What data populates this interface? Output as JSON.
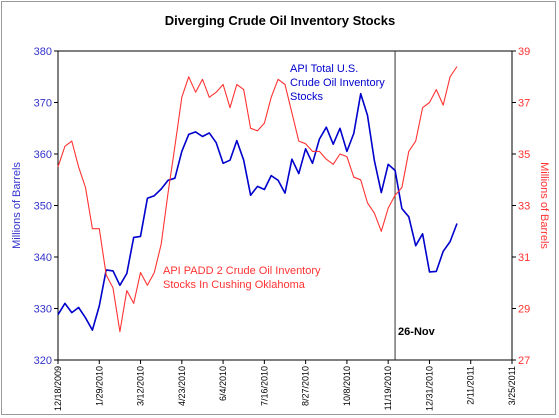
{
  "chart_data": {
    "type": "line",
    "title": "Diverging Crude Oil Inventory Stocks",
    "y_left_label": "Millions of Barrels",
    "y_right_label": "Millions of Barrels",
    "y_left_range": [
      320,
      380
    ],
    "y_left_ticks": [
      "320",
      "330",
      "340",
      "350",
      "360",
      "370",
      "380"
    ],
    "y_right_range": [
      27,
      39
    ],
    "y_right_ticks": [
      "27",
      "29",
      "31",
      "33",
      "35",
      "37",
      "39"
    ],
    "x_range": [
      "2009-12-18",
      "2011-03-25"
    ],
    "x_ticks": [
      "12/18/2009",
      "1/29/2010",
      "3/12/2010",
      "4/23/2010",
      "6/4/2010",
      "7/16/2010",
      "8/27/2010",
      "10/8/2010",
      "11/19/2010",
      "12/31/2010",
      "2/11/2011",
      "3/25/2011"
    ],
    "grid": false,
    "vertical_marker": {
      "date": "2010-11-26",
      "label": "26-Nov"
    },
    "series": [
      {
        "name": "API Total U.S. Crude Oil Inventory Stocks",
        "label_lines": [
          "API Total U.S.",
          "Crude Oil Inventory",
          "Stocks"
        ],
        "axis": "left",
        "color": "#0000cc",
        "x": [
          "2009-12-18",
          "2009-12-25",
          "2010-01-01",
          "2010-01-08",
          "2010-01-15",
          "2010-01-22",
          "2010-01-29",
          "2010-02-05",
          "2010-02-12",
          "2010-02-19",
          "2010-02-26",
          "2010-03-05",
          "2010-03-12",
          "2010-03-19",
          "2010-03-26",
          "2010-04-02",
          "2010-04-09",
          "2010-04-16",
          "2010-04-23",
          "2010-04-30",
          "2010-05-07",
          "2010-05-14",
          "2010-05-21",
          "2010-05-28",
          "2010-06-04",
          "2010-06-11",
          "2010-06-18",
          "2010-06-25",
          "2010-07-02",
          "2010-07-09",
          "2010-07-16",
          "2010-07-23",
          "2010-07-30",
          "2010-08-06",
          "2010-08-13",
          "2010-08-20",
          "2010-08-27",
          "2010-09-03",
          "2010-09-10",
          "2010-09-17",
          "2010-09-24",
          "2010-10-01",
          "2010-10-08",
          "2010-10-15",
          "2010-10-22",
          "2010-10-29",
          "2010-11-05",
          "2010-11-12",
          "2010-11-19",
          "2010-11-26",
          "2010-12-03",
          "2010-12-10",
          "2010-12-17",
          "2010-12-24",
          "2010-12-31",
          "2011-01-07",
          "2011-01-14",
          "2011-01-21",
          "2011-01-28"
        ],
        "values": [
          328.8,
          331,
          329.2,
          330.2,
          328.2,
          325.8,
          330.5,
          337.5,
          337.3,
          334.5,
          336.8,
          343.8,
          344,
          351.4,
          351.9,
          353.2,
          354.9,
          355.3,
          360.5,
          363.8,
          364.3,
          363.4,
          364.1,
          362.2,
          358.2,
          358.8,
          362.6,
          358.8,
          352,
          353.7,
          353.1,
          355.8,
          354.9,
          352.4,
          359,
          356.2,
          361,
          358.2,
          362.9,
          365.2,
          361.9,
          365,
          360.5,
          364,
          371.7,
          367.5,
          358.7,
          352.5,
          358,
          356.8,
          349.4,
          347.8,
          342.2,
          344.5,
          337.1,
          337.2,
          341.1,
          343,
          346.5
        ]
      },
      {
        "name": "API PADD 2 Crude Oil Inventory Stocks In Cushing Oklahoma",
        "label_lines": [
          "API PADD 2 Crude Oil Inventory",
          "Stocks In Cushing Oklahoma"
        ],
        "axis": "right",
        "color": "#ff3333",
        "x": [
          "2009-12-18",
          "2009-12-25",
          "2010-01-01",
          "2010-01-08",
          "2010-01-15",
          "2010-01-22",
          "2010-01-29",
          "2010-02-05",
          "2010-02-12",
          "2010-02-19",
          "2010-02-26",
          "2010-03-05",
          "2010-03-12",
          "2010-03-19",
          "2010-03-26",
          "2010-04-02",
          "2010-04-09",
          "2010-04-16",
          "2010-04-23",
          "2010-04-30",
          "2010-05-07",
          "2010-05-14",
          "2010-05-21",
          "2010-05-28",
          "2010-06-04",
          "2010-06-11",
          "2010-06-18",
          "2010-06-25",
          "2010-07-02",
          "2010-07-09",
          "2010-07-16",
          "2010-07-23",
          "2010-07-30",
          "2010-08-06",
          "2010-08-13",
          "2010-08-20",
          "2010-08-27",
          "2010-09-03",
          "2010-09-10",
          "2010-09-17",
          "2010-09-24",
          "2010-10-01",
          "2010-10-08",
          "2010-10-15",
          "2010-10-22",
          "2010-10-29",
          "2010-11-05",
          "2010-11-12",
          "2010-11-19",
          "2010-11-26",
          "2010-12-03",
          "2010-12-10",
          "2010-12-17",
          "2010-12-24",
          "2010-12-31",
          "2011-01-07",
          "2011-01-14",
          "2011-01-21",
          "2011-01-28"
        ],
        "values": [
          34.5,
          35.3,
          35.5,
          34.5,
          33.7,
          32.1,
          32.1,
          30.3,
          29.8,
          28.1,
          29.7,
          29.2,
          30.4,
          29.9,
          30.4,
          31.5,
          33.5,
          35.3,
          37.2,
          38,
          37.4,
          37.9,
          37.2,
          37.4,
          37.7,
          36.8,
          37.7,
          37.5,
          36,
          35.9,
          36.2,
          37.2,
          37.9,
          37.7,
          36.6,
          35.5,
          35.4,
          35.1,
          35.1,
          34.8,
          34.6,
          35,
          34.9,
          34.1,
          34,
          33.1,
          32.7,
          32,
          32.9,
          33.4,
          33.7,
          35.1,
          35.5,
          36.8,
          37,
          37.5,
          36.9,
          38,
          38.4
        ]
      }
    ]
  }
}
